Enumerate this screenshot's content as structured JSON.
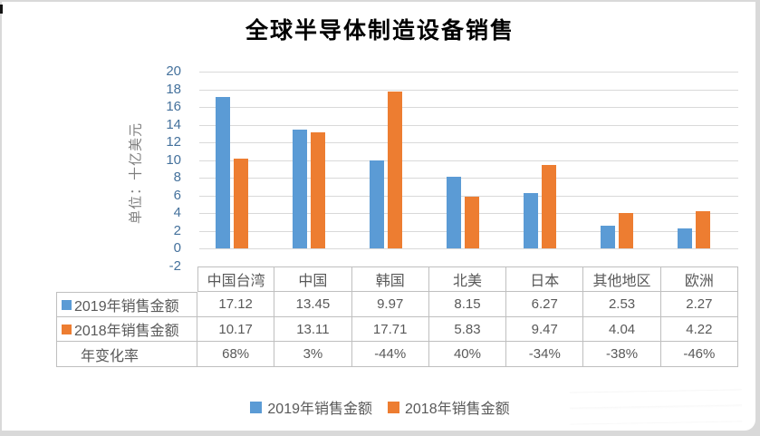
{
  "title": "全球半导体制造设备销售",
  "y_axis": {
    "label": "单位：十亿美元",
    "ticks": [
      20,
      18,
      16,
      14,
      12,
      10,
      8,
      6,
      4,
      2,
      0,
      -2
    ]
  },
  "chart_data": {
    "type": "bar",
    "title": "全球半导体制造设备销售",
    "ylabel": "单位：十亿美元",
    "ylim": [
      -2,
      20
    ],
    "y_tick_step": 2,
    "grid": true,
    "legend_position": "bottom",
    "categories": [
      "中国台湾",
      "中国",
      "韩国",
      "北美",
      "日本",
      "其他地区",
      "欧洲"
    ],
    "series": [
      {
        "name": "2019年销售金额",
        "color": "#5B9BD5",
        "values": [
          17.12,
          13.45,
          9.97,
          8.15,
          6.27,
          2.53,
          2.27
        ]
      },
      {
        "name": "2018年销售金额",
        "color": "#ED7D31",
        "values": [
          10.17,
          13.11,
          17.71,
          5.83,
          9.47,
          4.04,
          4.22
        ]
      }
    ],
    "extra_rows": [
      {
        "name": "年变化率",
        "values": [
          "68%",
          "3%",
          "-44%",
          "40%",
          "-34%",
          "-38%",
          "-46%"
        ]
      }
    ]
  },
  "legend": {
    "items": [
      {
        "label": "2019年销售金额",
        "color": "#5B9BD5"
      },
      {
        "label": "2018年销售金额",
        "color": "#ED7D31"
      }
    ]
  },
  "colors": {
    "series_2019": "#5B9BD5",
    "series_2018": "#ED7D31",
    "gridline": "#D9D9D9",
    "table_border": "#BFBFBF",
    "table_text": "#595959",
    "tick_label": "#44719C",
    "axis_title": "#7F7F7F",
    "title_text": "#000000"
  }
}
